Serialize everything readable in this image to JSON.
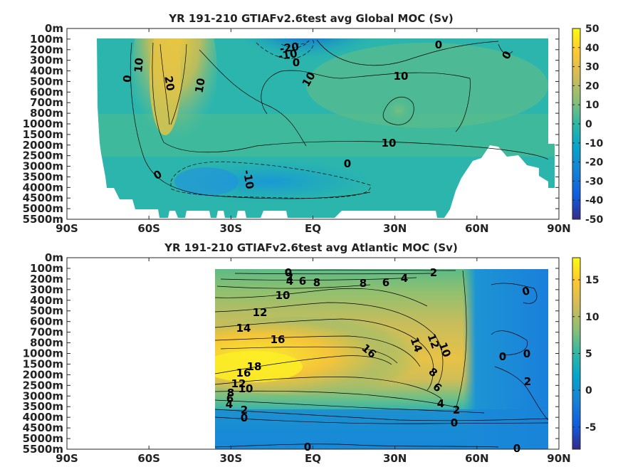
{
  "chart_data": [
    {
      "type": "heatmap",
      "title": "YR 191-210 GTIAFv2.6test avg  Global MOC (Sv)",
      "x_ticks": [
        "90S",
        "60S",
        "30S",
        "EQ",
        "30N",
        "60N",
        "90N"
      ],
      "y_ticks": [
        "0m",
        "100m",
        "200m",
        "300m",
        "400m",
        "500m",
        "600m",
        "700m",
        "800m",
        "1000m",
        "1500m",
        "2000m",
        "2500m",
        "3000m",
        "3500m",
        "4000m",
        "4500m",
        "5000m",
        "5500m"
      ],
      "colorbar_ticks": [
        "50",
        "40",
        "30",
        "20",
        "10",
        "0",
        "-10",
        "-20",
        "-30",
        "-40",
        "-50"
      ],
      "clim": [
        -50,
        50
      ],
      "colormap": "parula",
      "contour_labels": [
        "-20",
        "-10",
        "0",
        "0",
        "0",
        "10",
        "10",
        "20",
        "10",
        "10",
        "10",
        "0",
        "0",
        "-10"
      ]
    },
    {
      "type": "heatmap",
      "title": "YR 191-210 GTIAFv2.6test avg  Atlantic MOC (Sv)",
      "x_ticks": [
        "90S",
        "60S",
        "30S",
        "EQ",
        "30N",
        "60N",
        "90N"
      ],
      "y_ticks": [
        "0m",
        "100m",
        "200m",
        "300m",
        "400m",
        "500m",
        "600m",
        "700m",
        "800m",
        "1000m",
        "1500m",
        "2000m",
        "2500m",
        "3000m",
        "3500m",
        "4000m",
        "4500m",
        "5000m",
        "5500m"
      ],
      "colorbar_ticks": [
        "15",
        "10",
        "5",
        "0",
        "-5"
      ],
      "clim": [
        -8,
        18
      ],
      "colormap": "parula",
      "contour_labels": [
        "0",
        "2",
        "4",
        "6",
        "8",
        "8",
        "6",
        "4",
        "2",
        "0",
        "10",
        "12",
        "14",
        "16",
        "16",
        "14",
        "12",
        "10",
        "18",
        "16",
        "12",
        "10",
        "8",
        "6",
        "4",
        "2",
        "0",
        "8",
        "6",
        "4",
        "2",
        "0",
        "0",
        "0",
        "2",
        "0",
        "0"
      ]
    }
  ]
}
